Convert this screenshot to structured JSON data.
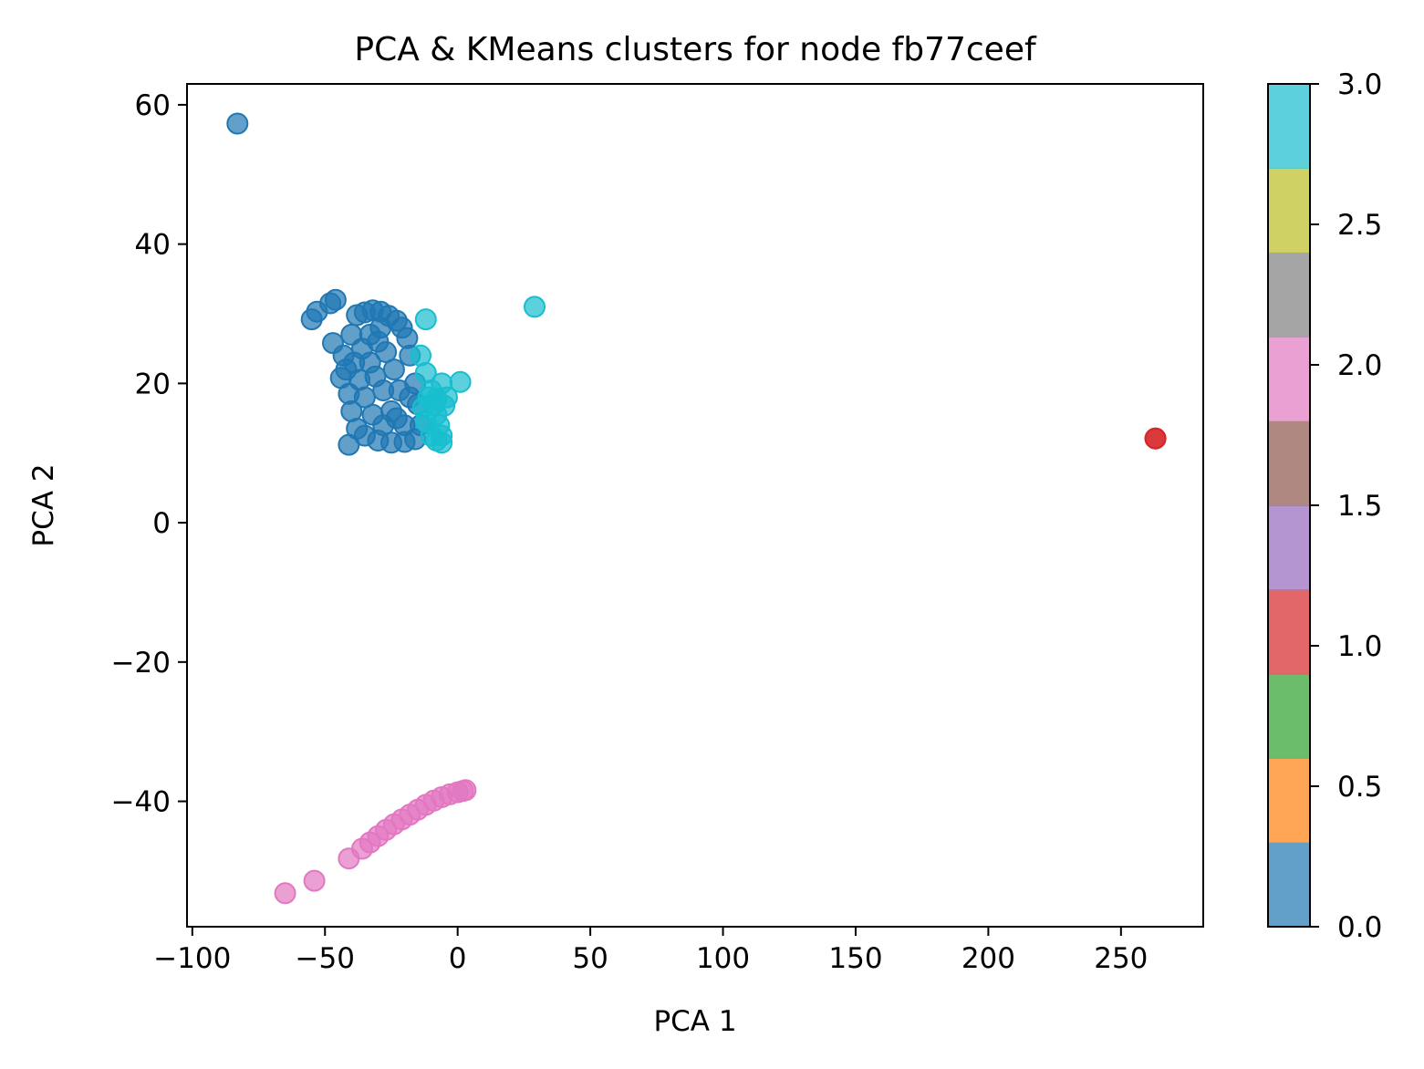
{
  "chart_data": {
    "type": "scatter",
    "title": "PCA & KMeans clusters for node fb77ceef",
    "xlabel": "PCA 1",
    "ylabel": "PCA 2",
    "xlim": [
      -102,
      281
    ],
    "ylim": [
      -58,
      63
    ],
    "xticks": [
      -100,
      -50,
      0,
      50,
      100,
      150,
      200,
      250
    ],
    "xtick_labels": [
      "−100",
      "−50",
      "0",
      "50",
      "100",
      "150",
      "200",
      "250"
    ],
    "yticks": [
      -40,
      -20,
      0,
      20,
      40,
      60
    ],
    "ytick_labels": [
      "−40",
      "−20",
      "0",
      "20",
      "40",
      "60"
    ],
    "grid": false,
    "colormap": "tab10 (4 clusters, 0–3)",
    "clusters": [
      {
        "label": 0,
        "color": "#1f77b4",
        "points": [
          [
            -83,
            57.3
          ],
          [
            -55,
            29.2
          ],
          [
            -53,
            30.3
          ],
          [
            -48,
            31.5
          ],
          [
            -46,
            32.0
          ],
          [
            -41,
            11.2
          ],
          [
            -47,
            25.8
          ],
          [
            -42,
            22.0
          ],
          [
            -44,
            20.8
          ],
          [
            -40,
            27.0
          ],
          [
            -38,
            29.8
          ],
          [
            -35,
            30.2
          ],
          [
            -32,
            30.5
          ],
          [
            -29,
            30.3
          ],
          [
            -26,
            29.7
          ],
          [
            -23,
            29.0
          ],
          [
            -21,
            28.0
          ],
          [
            -19,
            26.5
          ],
          [
            -18,
            24.0
          ],
          [
            -16,
            20.0
          ],
          [
            -15,
            17.0
          ],
          [
            -14,
            14.0
          ],
          [
            -16,
            12.0
          ],
          [
            -20,
            11.6
          ],
          [
            -25,
            11.5
          ],
          [
            -30,
            11.8
          ],
          [
            -35,
            12.5
          ],
          [
            -38,
            13.5
          ],
          [
            -40,
            16.0
          ],
          [
            -41,
            18.5
          ],
          [
            -43,
            24.0
          ],
          [
            -39,
            23.0
          ],
          [
            -36,
            25.0
          ],
          [
            -33,
            27.0
          ],
          [
            -30,
            26.0
          ],
          [
            -27,
            24.5
          ],
          [
            -24,
            22.0
          ],
          [
            -22,
            19.0
          ],
          [
            -25,
            16.0
          ],
          [
            -28,
            14.0
          ],
          [
            -32,
            15.5
          ],
          [
            -35,
            18.0
          ],
          [
            -37,
            20.5
          ],
          [
            -31,
            21.0
          ],
          [
            -28,
            19.0
          ],
          [
            -23,
            15.0
          ],
          [
            -20,
            14.0
          ],
          [
            -18,
            18.0
          ],
          [
            -33,
            23.0
          ],
          [
            -29,
            28.0
          ]
        ]
      },
      {
        "label": 1,
        "color": "#d62728",
        "points": [
          [
            263,
            12.1
          ],
          [
            263,
            12.1
          ]
        ]
      },
      {
        "label": 2,
        "color": "#e377c2",
        "points": [
          [
            -65,
            -53.2
          ],
          [
            -54,
            -51.4
          ],
          [
            -41,
            -48.2
          ],
          [
            -36,
            -46.8
          ],
          [
            -33,
            -45.9
          ],
          [
            -30,
            -45.0
          ],
          [
            -27,
            -44.1
          ],
          [
            -24,
            -43.3
          ],
          [
            -21,
            -42.6
          ],
          [
            -18,
            -41.9
          ],
          [
            -15,
            -41.2
          ],
          [
            -12,
            -40.5
          ],
          [
            -9,
            -39.9
          ],
          [
            -6,
            -39.4
          ],
          [
            -3,
            -39.0
          ],
          [
            0,
            -38.7
          ],
          [
            2,
            -38.5
          ],
          [
            3,
            -38.4
          ]
        ]
      },
      {
        "label": 3,
        "color": "#17becf",
        "points": [
          [
            29,
            31.0
          ],
          [
            -12,
            29.2
          ],
          [
            1,
            20.2
          ],
          [
            -14,
            24.0
          ],
          [
            -12,
            21.5
          ],
          [
            -10,
            19.0
          ],
          [
            -9,
            17.0
          ],
          [
            -8,
            15.5
          ],
          [
            -7,
            14.0
          ],
          [
            -6,
            12.5
          ],
          [
            -6,
            11.5
          ],
          [
            -8,
            11.8
          ],
          [
            -10,
            12.5
          ],
          [
            -12,
            14.5
          ],
          [
            -13,
            16.5
          ],
          [
            -11,
            18.0
          ],
          [
            -5,
            16.8
          ],
          [
            -4,
            18.0
          ],
          [
            -6,
            20.0
          ],
          [
            -8,
            17.8
          ]
        ]
      }
    ],
    "colorbar": {
      "range": [
        0.0,
        3.0
      ],
      "ticks": [
        "0.0",
        "0.5",
        "1.0",
        "1.5",
        "2.0",
        "2.5",
        "3.0"
      ],
      "colors": [
        "#1f77b4",
        "#ff7f0e",
        "#2ca02c",
        "#d62728",
        "#9467bd",
        "#8c564b",
        "#e377c2",
        "#7f7f7f",
        "#bcbd22",
        "#17becf"
      ]
    }
  }
}
